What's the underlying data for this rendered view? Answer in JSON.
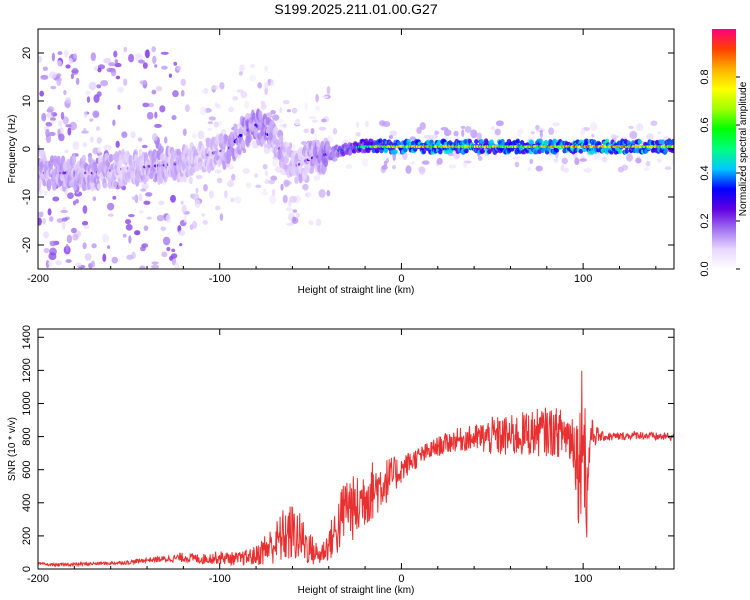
{
  "figure": {
    "title": "S199.2025.211.01.00.G27"
  },
  "chart_data": [
    {
      "type": "heatmap",
      "title": "S199.2025.211.01.00.G27",
      "xlabel": "Height of straight line (km)",
      "ylabel": "Frequency (Hz)",
      "xlim": [
        -200,
        150
      ],
      "ylim": [
        -25,
        25
      ],
      "xticks": [
        -200,
        -100,
        0,
        100
      ],
      "xtick_labels": [
        "-200",
        "-100",
        "0",
        "100"
      ],
      "yticks": [
        -20,
        -10,
        0,
        10,
        20
      ],
      "ytick_labels": [
        "-20",
        "-10",
        "0",
        "10",
        "20"
      ],
      "colorbar": {
        "label": "Normalized spectral amplitude",
        "range": [
          0,
          1
        ],
        "ticks": [
          0.0,
          0.2,
          0.4,
          0.6,
          0.8
        ],
        "tick_labels": [
          "0.0",
          "0.2",
          "0.4",
          "0.6",
          "0.8"
        ],
        "colors": [
          "#ffffff",
          "#e7d6ff",
          "#a070f0",
          "#6000e0",
          "#0000ff",
          "#00c8ff",
          "#00ff80",
          "#00ff00",
          "#a0ff00",
          "#ffff00",
          "#ffb000",
          "#ff4000",
          "#ff0080"
        ]
      },
      "ridge": {
        "x": [
          -170,
          -150,
          -135,
          -120,
          -105,
          -95,
          -88,
          -80,
          -70,
          -60,
          -50,
          -40,
          -30,
          -20,
          -10,
          0,
          20,
          40,
          60,
          80,
          100,
          120,
          150
        ],
        "y": [
          -5,
          -4,
          -3.5,
          -3,
          -1,
          0,
          3,
          5,
          2,
          -4,
          -2,
          -1,
          0.2,
          0.5,
          0.5,
          0.5,
          0.5,
          0.5,
          0.5,
          0.5,
          0.5,
          0.5,
          0.5
        ],
        "amplitude": [
          0.25,
          0.2,
          0.25,
          0.22,
          0.2,
          0.25,
          0.28,
          0.3,
          0.25,
          0.2,
          0.25,
          0.3,
          0.4,
          0.55,
          0.7,
          0.75,
          0.8,
          0.75,
          0.7,
          0.78,
          0.85,
          0.8,
          0.7
        ]
      },
      "grid": false
    },
    {
      "type": "line",
      "xlabel": "Height of straight line (km)",
      "ylabel": "SNR (10 * v/v)",
      "xlim": [
        -200,
        150
      ],
      "ylim": [
        0,
        1450
      ],
      "xticks": [
        -200,
        -100,
        0,
        100
      ],
      "xtick_labels": [
        "-200",
        "-100",
        "0",
        "100"
      ],
      "yticks": [
        0,
        200,
        400,
        600,
        800,
        1000,
        1200,
        1400
      ],
      "ytick_labels": [
        "0",
        "200",
        "400",
        "600",
        "800",
        "1000",
        "1200",
        "1400"
      ],
      "series": [
        {
          "color": "#e83030",
          "x": [
            -200,
            -190,
            -180,
            -170,
            -160,
            -150,
            -140,
            -130,
            -120,
            -110,
            -100,
            -90,
            -80,
            -75,
            -70,
            -65,
            -60,
            -55,
            -50,
            -45,
            -40,
            -35,
            -30,
            -25,
            -20,
            -15,
            -10,
            -5,
            0,
            5,
            10,
            20,
            30,
            40,
            50,
            60,
            70,
            80,
            90,
            95,
            98,
            100,
            102,
            104,
            110,
            120,
            130,
            140,
            150
          ],
          "y": [
            30,
            25,
            28,
            32,
            35,
            40,
            55,
            60,
            70,
            60,
            70,
            60,
            80,
            120,
            150,
            200,
            220,
            180,
            120,
            80,
            150,
            250,
            400,
            350,
            450,
            480,
            520,
            560,
            600,
            650,
            680,
            740,
            780,
            790,
            800,
            800,
            820,
            830,
            820,
            780,
            600,
            1000,
            400,
            820,
            800,
            800,
            810,
            800,
            800
          ],
          "noise": [
            10,
            8,
            10,
            10,
            10,
            12,
            15,
            20,
            30,
            30,
            40,
            40,
            60,
            100,
            120,
            170,
            180,
            150,
            100,
            60,
            100,
            180,
            200,
            200,
            200,
            180,
            150,
            120,
            80,
            70,
            60,
            60,
            70,
            80,
            120,
            130,
            140,
            150,
            150,
            200,
            400,
            450,
            350,
            100,
            30,
            25,
            25,
            25,
            25
          ]
        }
      ],
      "grid": false
    }
  ]
}
